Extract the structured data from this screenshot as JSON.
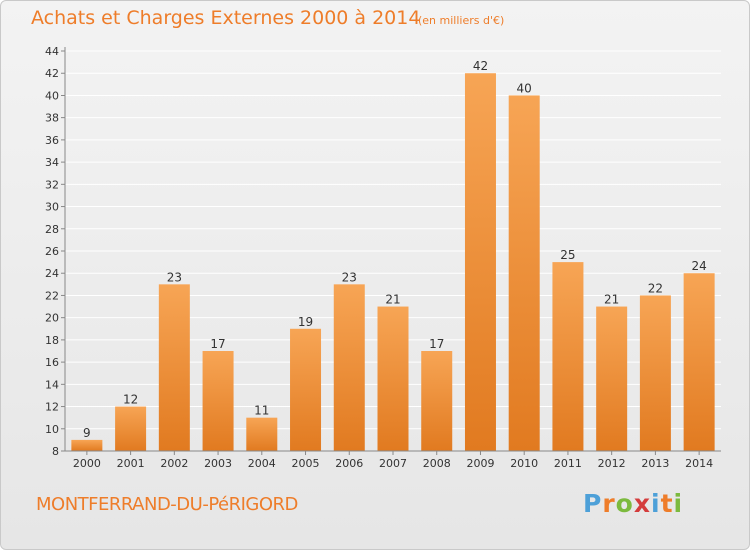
{
  "header": {
    "title": "Achats et Charges Externes 2000 à 2014",
    "subtitle": "(en milliers d'€)"
  },
  "footer": {
    "commune": "MONTFERRAND-DU-PéRIGORD",
    "logo_text": "Proxiti",
    "logo_colors": [
      "#4da0d8",
      "#ee7d2a",
      "#7cba3e",
      "#d43c3c",
      "#4da0d8",
      "#ee7d2a",
      "#7cba3e"
    ]
  },
  "colors": {
    "bar_light": "#f7a555",
    "bar_dark": "#e17a20",
    "accent": "#ee7d2a",
    "grid": "#ffffff",
    "text": "#333333"
  },
  "chart_data": {
    "type": "bar",
    "title": "Achats et Charges Externes 2000 à 2014",
    "subtitle": "(en milliers d'€)",
    "categories": [
      "2000",
      "2001",
      "2002",
      "2003",
      "2004",
      "2005",
      "2006",
      "2007",
      "2008",
      "2009",
      "2010",
      "2011",
      "2012",
      "2013",
      "2014"
    ],
    "values": [
      9,
      12,
      23,
      17,
      11,
      19,
      23,
      21,
      17,
      42,
      40,
      25,
      21,
      22,
      24
    ],
    "ylim": [
      8,
      44
    ],
    "yticks": [
      8,
      10,
      12,
      14,
      16,
      18,
      20,
      22,
      24,
      26,
      28,
      30,
      32,
      34,
      36,
      38,
      40,
      42,
      44
    ],
    "xlabel": "",
    "ylabel": "",
    "grid": true
  }
}
